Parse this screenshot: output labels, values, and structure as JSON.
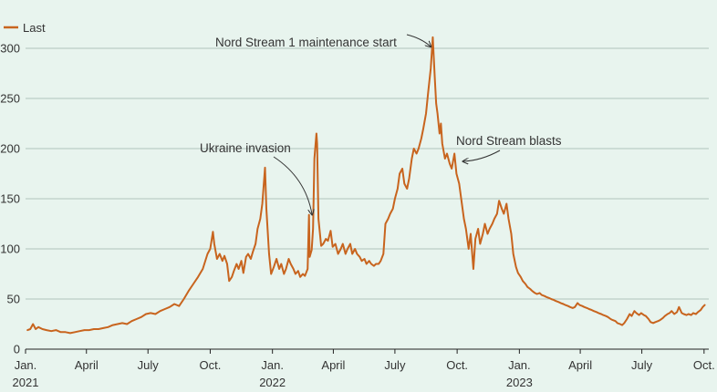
{
  "chart_data": {
    "type": "line",
    "title": "",
    "xlabel": "",
    "ylabel": "",
    "ylim": [
      0,
      330
    ],
    "xlim": [
      "2021-01-01",
      "2023-10-08"
    ],
    "grid": true,
    "legend": {
      "position": "top-left",
      "entries": [
        {
          "label": "Last",
          "color": "#c8641e"
        }
      ]
    },
    "yticks": [
      {
        "value": 0,
        "label": "0"
      },
      {
        "value": 50,
        "label": "50"
      },
      {
        "value": 100,
        "label": "100"
      },
      {
        "value": 150,
        "label": "150"
      },
      {
        "value": 200,
        "label": "200"
      },
      {
        "value": 250,
        "label": "250"
      },
      {
        "value": 300,
        "label": "300"
      }
    ],
    "xticks": [
      {
        "date": "2021-01-01",
        "line1": "Jan.",
        "line2": "2021"
      },
      {
        "date": "2021-04-01",
        "line1": "April",
        "line2": ""
      },
      {
        "date": "2021-07-01",
        "line1": "July",
        "line2": ""
      },
      {
        "date": "2021-10-01",
        "line1": "Oct.",
        "line2": ""
      },
      {
        "date": "2022-01-01",
        "line1": "Jan.",
        "line2": "2022"
      },
      {
        "date": "2022-04-01",
        "line1": "April",
        "line2": ""
      },
      {
        "date": "2022-07-01",
        "line1": "July",
        "line2": ""
      },
      {
        "date": "2022-10-01",
        "line1": "Oct.",
        "line2": ""
      },
      {
        "date": "2023-01-01",
        "line1": "Jan.",
        "line2": "2023"
      },
      {
        "date": "2023-04-01",
        "line1": "April",
        "line2": ""
      },
      {
        "date": "2023-07-01",
        "line1": "July",
        "line2": ""
      },
      {
        "date": "2023-10-01",
        "line1": "Oct.",
        "line2": ""
      }
    ],
    "series": [
      {
        "name": "Last",
        "color": "#c8641e",
        "points": [
          [
            "2021-01-04",
            19
          ],
          [
            "2021-01-08",
            20
          ],
          [
            "2021-01-12",
            25
          ],
          [
            "2021-01-16",
            20
          ],
          [
            "2021-01-20",
            22
          ],
          [
            "2021-01-26",
            20
          ],
          [
            "2021-02-01",
            19
          ],
          [
            "2021-02-08",
            18
          ],
          [
            "2021-02-15",
            19
          ],
          [
            "2021-02-22",
            17
          ],
          [
            "2021-03-01",
            17
          ],
          [
            "2021-03-08",
            16
          ],
          [
            "2021-03-15",
            17
          ],
          [
            "2021-03-22",
            18
          ],
          [
            "2021-03-29",
            19
          ],
          [
            "2021-04-05",
            19
          ],
          [
            "2021-04-12",
            20
          ],
          [
            "2021-04-19",
            20
          ],
          [
            "2021-04-26",
            21
          ],
          [
            "2021-05-03",
            22
          ],
          [
            "2021-05-10",
            24
          ],
          [
            "2021-05-17",
            25
          ],
          [
            "2021-05-24",
            26
          ],
          [
            "2021-05-31",
            25
          ],
          [
            "2021-06-07",
            28
          ],
          [
            "2021-06-14",
            30
          ],
          [
            "2021-06-21",
            32
          ],
          [
            "2021-06-28",
            35
          ],
          [
            "2021-07-05",
            36
          ],
          [
            "2021-07-12",
            35
          ],
          [
            "2021-07-19",
            38
          ],
          [
            "2021-07-26",
            40
          ],
          [
            "2021-08-02",
            42
          ],
          [
            "2021-08-09",
            45
          ],
          [
            "2021-08-16",
            43
          ],
          [
            "2021-08-23",
            50
          ],
          [
            "2021-08-30",
            58
          ],
          [
            "2021-09-06",
            65
          ],
          [
            "2021-09-13",
            72
          ],
          [
            "2021-09-20",
            80
          ],
          [
            "2021-09-27",
            95
          ],
          [
            "2021-10-01",
            100
          ],
          [
            "2021-10-05",
            117
          ],
          [
            "2021-10-07",
            105
          ],
          [
            "2021-10-11",
            90
          ],
          [
            "2021-10-15",
            95
          ],
          [
            "2021-10-19",
            88
          ],
          [
            "2021-10-22",
            93
          ],
          [
            "2021-10-26",
            85
          ],
          [
            "2021-10-29",
            68
          ],
          [
            "2021-11-02",
            72
          ],
          [
            "2021-11-05",
            78
          ],
          [
            "2021-11-09",
            85
          ],
          [
            "2021-11-12",
            80
          ],
          [
            "2021-11-16",
            88
          ],
          [
            "2021-11-19",
            76
          ],
          [
            "2021-11-23",
            92
          ],
          [
            "2021-11-26",
            95
          ],
          [
            "2021-11-30",
            90
          ],
          [
            "2021-12-03",
            97
          ],
          [
            "2021-12-07",
            105
          ],
          [
            "2021-12-10",
            120
          ],
          [
            "2021-12-14",
            130
          ],
          [
            "2021-12-17",
            145
          ],
          [
            "2021-12-21",
            181
          ],
          [
            "2021-12-23",
            140
          ],
          [
            "2021-12-27",
            95
          ],
          [
            "2021-12-30",
            75
          ],
          [
            "2022-01-03",
            82
          ],
          [
            "2022-01-07",
            90
          ],
          [
            "2022-01-11",
            80
          ],
          [
            "2022-01-14",
            85
          ],
          [
            "2022-01-18",
            75
          ],
          [
            "2022-01-21",
            80
          ],
          [
            "2022-01-25",
            90
          ],
          [
            "2022-01-28",
            85
          ],
          [
            "2022-02-01",
            80
          ],
          [
            "2022-02-04",
            75
          ],
          [
            "2022-02-08",
            78
          ],
          [
            "2022-02-11",
            72
          ],
          [
            "2022-02-15",
            75
          ],
          [
            "2022-02-18",
            73
          ],
          [
            "2022-02-22",
            80
          ],
          [
            "2022-02-24",
            134
          ],
          [
            "2022-02-25",
            92
          ],
          [
            "2022-02-28",
            99
          ],
          [
            "2022-03-02",
            120
          ],
          [
            "2022-03-04",
            190
          ],
          [
            "2022-03-07",
            215
          ],
          [
            "2022-03-08",
            205
          ],
          [
            "2022-03-10",
            130
          ],
          [
            "2022-03-14",
            103
          ],
          [
            "2022-03-17",
            105
          ],
          [
            "2022-03-21",
            110
          ],
          [
            "2022-03-24",
            108
          ],
          [
            "2022-03-28",
            118
          ],
          [
            "2022-03-31",
            102
          ],
          [
            "2022-04-04",
            105
          ],
          [
            "2022-04-08",
            95
          ],
          [
            "2022-04-12",
            100
          ],
          [
            "2022-04-15",
            105
          ],
          [
            "2022-04-19",
            95
          ],
          [
            "2022-04-22",
            100
          ],
          [
            "2022-04-26",
            105
          ],
          [
            "2022-04-29",
            95
          ],
          [
            "2022-05-03",
            100
          ],
          [
            "2022-05-06",
            95
          ],
          [
            "2022-05-10",
            92
          ],
          [
            "2022-05-13",
            88
          ],
          [
            "2022-05-17",
            90
          ],
          [
            "2022-05-20",
            85
          ],
          [
            "2022-05-24",
            88
          ],
          [
            "2022-05-27",
            85
          ],
          [
            "2022-05-31",
            83
          ],
          [
            "2022-06-03",
            85
          ],
          [
            "2022-06-07",
            85
          ],
          [
            "2022-06-10",
            88
          ],
          [
            "2022-06-14",
            95
          ],
          [
            "2022-06-17",
            125
          ],
          [
            "2022-06-21",
            130
          ],
          [
            "2022-06-24",
            135
          ],
          [
            "2022-06-28",
            140
          ],
          [
            "2022-07-01",
            150
          ],
          [
            "2022-07-05",
            160
          ],
          [
            "2022-07-08",
            175
          ],
          [
            "2022-07-12",
            180
          ],
          [
            "2022-07-15",
            165
          ],
          [
            "2022-07-19",
            160
          ],
          [
            "2022-07-22",
            170
          ],
          [
            "2022-07-26",
            190
          ],
          [
            "2022-07-29",
            200
          ],
          [
            "2022-08-02",
            195
          ],
          [
            "2022-08-05",
            200
          ],
          [
            "2022-08-09",
            210
          ],
          [
            "2022-08-12",
            220
          ],
          [
            "2022-08-16",
            235
          ],
          [
            "2022-08-19",
            255
          ],
          [
            "2022-08-23",
            280
          ],
          [
            "2022-08-26",
            311
          ],
          [
            "2022-08-29",
            270
          ],
          [
            "2022-08-31",
            245
          ],
          [
            "2022-09-02",
            235
          ],
          [
            "2022-09-05",
            215
          ],
          [
            "2022-09-07",
            225
          ],
          [
            "2022-09-09",
            205
          ],
          [
            "2022-09-13",
            190
          ],
          [
            "2022-09-16",
            195
          ],
          [
            "2022-09-20",
            185
          ],
          [
            "2022-09-23",
            180
          ],
          [
            "2022-09-27",
            195
          ],
          [
            "2022-09-30",
            175
          ],
          [
            "2022-10-04",
            165
          ],
          [
            "2022-10-07",
            150
          ],
          [
            "2022-10-11",
            130
          ],
          [
            "2022-10-14",
            120
          ],
          [
            "2022-10-18",
            100
          ],
          [
            "2022-10-21",
            115
          ],
          [
            "2022-10-25",
            80
          ],
          [
            "2022-10-28",
            110
          ],
          [
            "2022-11-01",
            120
          ],
          [
            "2022-11-04",
            105
          ],
          [
            "2022-11-08",
            115
          ],
          [
            "2022-11-11",
            125
          ],
          [
            "2022-11-15",
            115
          ],
          [
            "2022-11-18",
            120
          ],
          [
            "2022-11-22",
            125
          ],
          [
            "2022-11-25",
            130
          ],
          [
            "2022-11-29",
            135
          ],
          [
            "2022-12-02",
            148
          ],
          [
            "2022-12-06",
            140
          ],
          [
            "2022-12-09",
            135
          ],
          [
            "2022-12-13",
            145
          ],
          [
            "2022-12-16",
            130
          ],
          [
            "2022-12-20",
            115
          ],
          [
            "2022-12-23",
            95
          ],
          [
            "2022-12-27",
            82
          ],
          [
            "2022-12-30",
            76
          ],
          [
            "2023-01-03",
            72
          ],
          [
            "2023-01-06",
            68
          ],
          [
            "2023-01-10",
            65
          ],
          [
            "2023-01-13",
            62
          ],
          [
            "2023-01-17",
            60
          ],
          [
            "2023-01-20",
            58
          ],
          [
            "2023-01-24",
            56
          ],
          [
            "2023-01-27",
            55
          ],
          [
            "2023-01-31",
            56
          ],
          [
            "2023-02-03",
            54
          ],
          [
            "2023-02-07",
            53
          ],
          [
            "2023-02-10",
            52
          ],
          [
            "2023-02-14",
            51
          ],
          [
            "2023-02-17",
            50
          ],
          [
            "2023-02-21",
            49
          ],
          [
            "2023-02-24",
            48
          ],
          [
            "2023-02-28",
            47
          ],
          [
            "2023-03-03",
            46
          ],
          [
            "2023-03-07",
            45
          ],
          [
            "2023-03-10",
            44
          ],
          [
            "2023-03-14",
            43
          ],
          [
            "2023-03-17",
            42
          ],
          [
            "2023-03-21",
            41
          ],
          [
            "2023-03-24",
            42
          ],
          [
            "2023-03-28",
            46
          ],
          [
            "2023-03-31",
            44
          ],
          [
            "2023-04-04",
            43
          ],
          [
            "2023-04-07",
            42
          ],
          [
            "2023-04-11",
            41
          ],
          [
            "2023-04-14",
            40
          ],
          [
            "2023-04-18",
            39
          ],
          [
            "2023-04-21",
            38
          ],
          [
            "2023-04-25",
            37
          ],
          [
            "2023-04-28",
            36
          ],
          [
            "2023-05-02",
            35
          ],
          [
            "2023-05-05",
            34
          ],
          [
            "2023-05-09",
            33
          ],
          [
            "2023-05-12",
            32
          ],
          [
            "2023-05-16",
            30
          ],
          [
            "2023-05-19",
            29
          ],
          [
            "2023-05-23",
            28
          ],
          [
            "2023-05-26",
            26
          ],
          [
            "2023-05-30",
            25
          ],
          [
            "2023-06-02",
            24
          ],
          [
            "2023-06-05",
            26
          ],
          [
            "2023-06-09",
            30
          ],
          [
            "2023-06-13",
            35
          ],
          [
            "2023-06-16",
            33
          ],
          [
            "2023-06-20",
            38
          ],
          [
            "2023-06-23",
            36
          ],
          [
            "2023-06-27",
            34
          ],
          [
            "2023-06-30",
            36
          ],
          [
            "2023-07-04",
            34
          ],
          [
            "2023-07-07",
            33
          ],
          [
            "2023-07-11",
            30
          ],
          [
            "2023-07-14",
            27
          ],
          [
            "2023-07-18",
            26
          ],
          [
            "2023-07-21",
            27
          ],
          [
            "2023-07-25",
            28
          ],
          [
            "2023-07-28",
            29
          ],
          [
            "2023-08-01",
            31
          ],
          [
            "2023-08-04",
            33
          ],
          [
            "2023-08-08",
            35
          ],
          [
            "2023-08-11",
            36
          ],
          [
            "2023-08-14",
            38
          ],
          [
            "2023-08-18",
            35
          ],
          [
            "2023-08-22",
            37
          ],
          [
            "2023-08-25",
            42
          ],
          [
            "2023-08-29",
            36
          ],
          [
            "2023-09-01",
            35
          ],
          [
            "2023-09-05",
            34
          ],
          [
            "2023-09-08",
            35
          ],
          [
            "2023-09-12",
            34
          ],
          [
            "2023-09-15",
            36
          ],
          [
            "2023-09-19",
            35
          ],
          [
            "2023-09-22",
            37
          ],
          [
            "2023-09-26",
            39
          ],
          [
            "2023-09-29",
            42
          ],
          [
            "2023-10-02",
            44
          ]
        ]
      }
    ],
    "annotations": [
      {
        "text": "Nord Stream 1 maintenance start",
        "date": "2022-08-26",
        "value": 311
      },
      {
        "text": "Ukraine invasion",
        "date": "2022-02-24",
        "value": 134
      },
      {
        "text": "Nord Stream blasts",
        "date": "2022-09-27",
        "value": 195
      }
    ]
  }
}
